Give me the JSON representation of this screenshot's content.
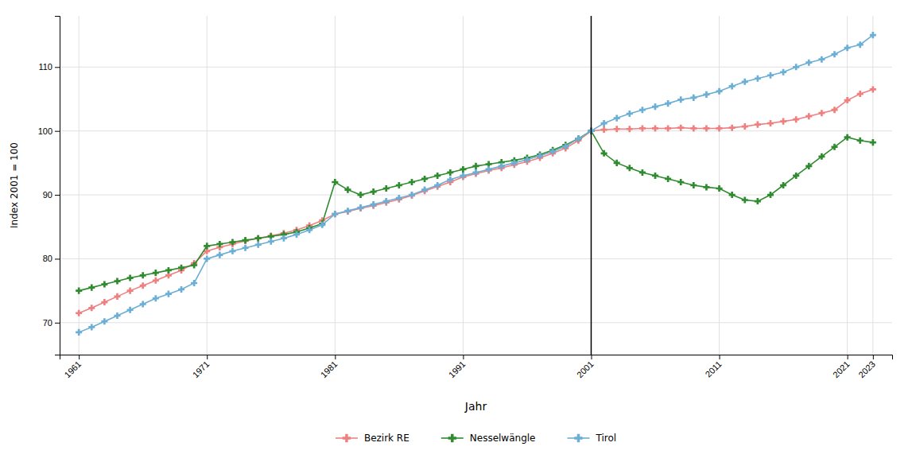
{
  "chart_data": {
    "type": "line",
    "x_label": "Jahr",
    "y_label": "Index 2001 = 100",
    "x": [
      1961,
      1962,
      1963,
      1964,
      1965,
      1966,
      1967,
      1968,
      1969,
      1970,
      1971,
      1972,
      1973,
      1974,
      1975,
      1976,
      1977,
      1978,
      1979,
      1980,
      1981,
      1982,
      1983,
      1984,
      1985,
      1986,
      1987,
      1988,
      1989,
      1990,
      1991,
      1992,
      1993,
      1994,
      1995,
      1996,
      1997,
      1998,
      1999,
      2000,
      2001,
      2002,
      2003,
      2004,
      2005,
      2006,
      2007,
      2008,
      2009,
      2010,
      2011,
      2012,
      2013,
      2014,
      2015,
      2016,
      2017,
      2018,
      2019,
      2020,
      2021,
      2022,
      2023
    ],
    "series": [
      {
        "name": "Bezirk RE",
        "color": "#F08080",
        "marker": "plus",
        "values": [
          71.5,
          72.3,
          73.2,
          74.1,
          75.0,
          75.8,
          76.6,
          77.4,
          78.2,
          79.3,
          81.2,
          81.8,
          82.3,
          82.8,
          83.2,
          83.6,
          84.0,
          84.5,
          85.2,
          86.0,
          87.0,
          87.4,
          87.9,
          88.3,
          88.8,
          89.3,
          89.9,
          90.6,
          91.3,
          92.0,
          92.8,
          93.3,
          93.8,
          94.2,
          94.7,
          95.2,
          95.8,
          96.5,
          97.3,
          98.5,
          100.0,
          100.2,
          100.3,
          100.3,
          100.4,
          100.4,
          100.4,
          100.5,
          100.4,
          100.4,
          100.4,
          100.5,
          100.7,
          101.0,
          101.2,
          101.5,
          101.8,
          102.3,
          102.8,
          103.3,
          104.8,
          105.8,
          106.5
        ]
      },
      {
        "name": "Nesselwängle",
        "color": "#2e8b2e",
        "marker": "plus",
        "values": [
          75.0,
          75.5,
          76.0,
          76.5,
          77.0,
          77.4,
          77.8,
          78.2,
          78.6,
          79.0,
          82.0,
          82.3,
          82.6,
          82.9,
          83.2,
          83.5,
          83.8,
          84.2,
          84.8,
          85.5,
          92.0,
          90.8,
          90.0,
          90.5,
          91.0,
          91.5,
          92.0,
          92.5,
          93.0,
          93.5,
          94.0,
          94.5,
          94.8,
          95.1,
          95.4,
          95.8,
          96.3,
          97.0,
          97.8,
          98.8,
          100.0,
          96.5,
          95.0,
          94.2,
          93.5,
          93.0,
          92.5,
          92.0,
          91.5,
          91.2,
          91.0,
          90.0,
          89.2,
          89.0,
          90.0,
          91.5,
          93.0,
          94.5,
          96.0,
          97.5,
          99.0,
          98.5,
          98.2
        ]
      },
      {
        "name": "Tirol",
        "color": "#6baed6",
        "marker": "plus",
        "values": [
          68.5,
          69.3,
          70.2,
          71.1,
          72.0,
          72.9,
          73.8,
          74.5,
          75.2,
          76.2,
          80.0,
          80.6,
          81.2,
          81.7,
          82.2,
          82.7,
          83.2,
          83.8,
          84.5,
          85.3,
          87.0,
          87.5,
          88.0,
          88.5,
          89.0,
          89.5,
          90.0,
          90.8,
          91.5,
          92.4,
          93.0,
          93.5,
          94.0,
          94.5,
          95.0,
          95.5,
          96.1,
          96.8,
          97.6,
          98.8,
          100.0,
          101.2,
          102.0,
          102.7,
          103.3,
          103.8,
          104.3,
          104.9,
          105.2,
          105.7,
          106.2,
          107.0,
          107.7,
          108.2,
          108.7,
          109.2,
          110.0,
          110.7,
          111.2,
          112.0,
          113.0,
          113.5,
          115.0
        ]
      }
    ],
    "vline": 2001,
    "xlim": [
      1959.5,
      2024.5
    ],
    "ylim": [
      65,
      118
    ],
    "xticks": [
      1961,
      1971,
      1981,
      1991,
      2001,
      2011,
      2021,
      2023
    ],
    "yticks": [
      70,
      80,
      90,
      100,
      110
    ],
    "grid": true,
    "legend": "bottom"
  }
}
